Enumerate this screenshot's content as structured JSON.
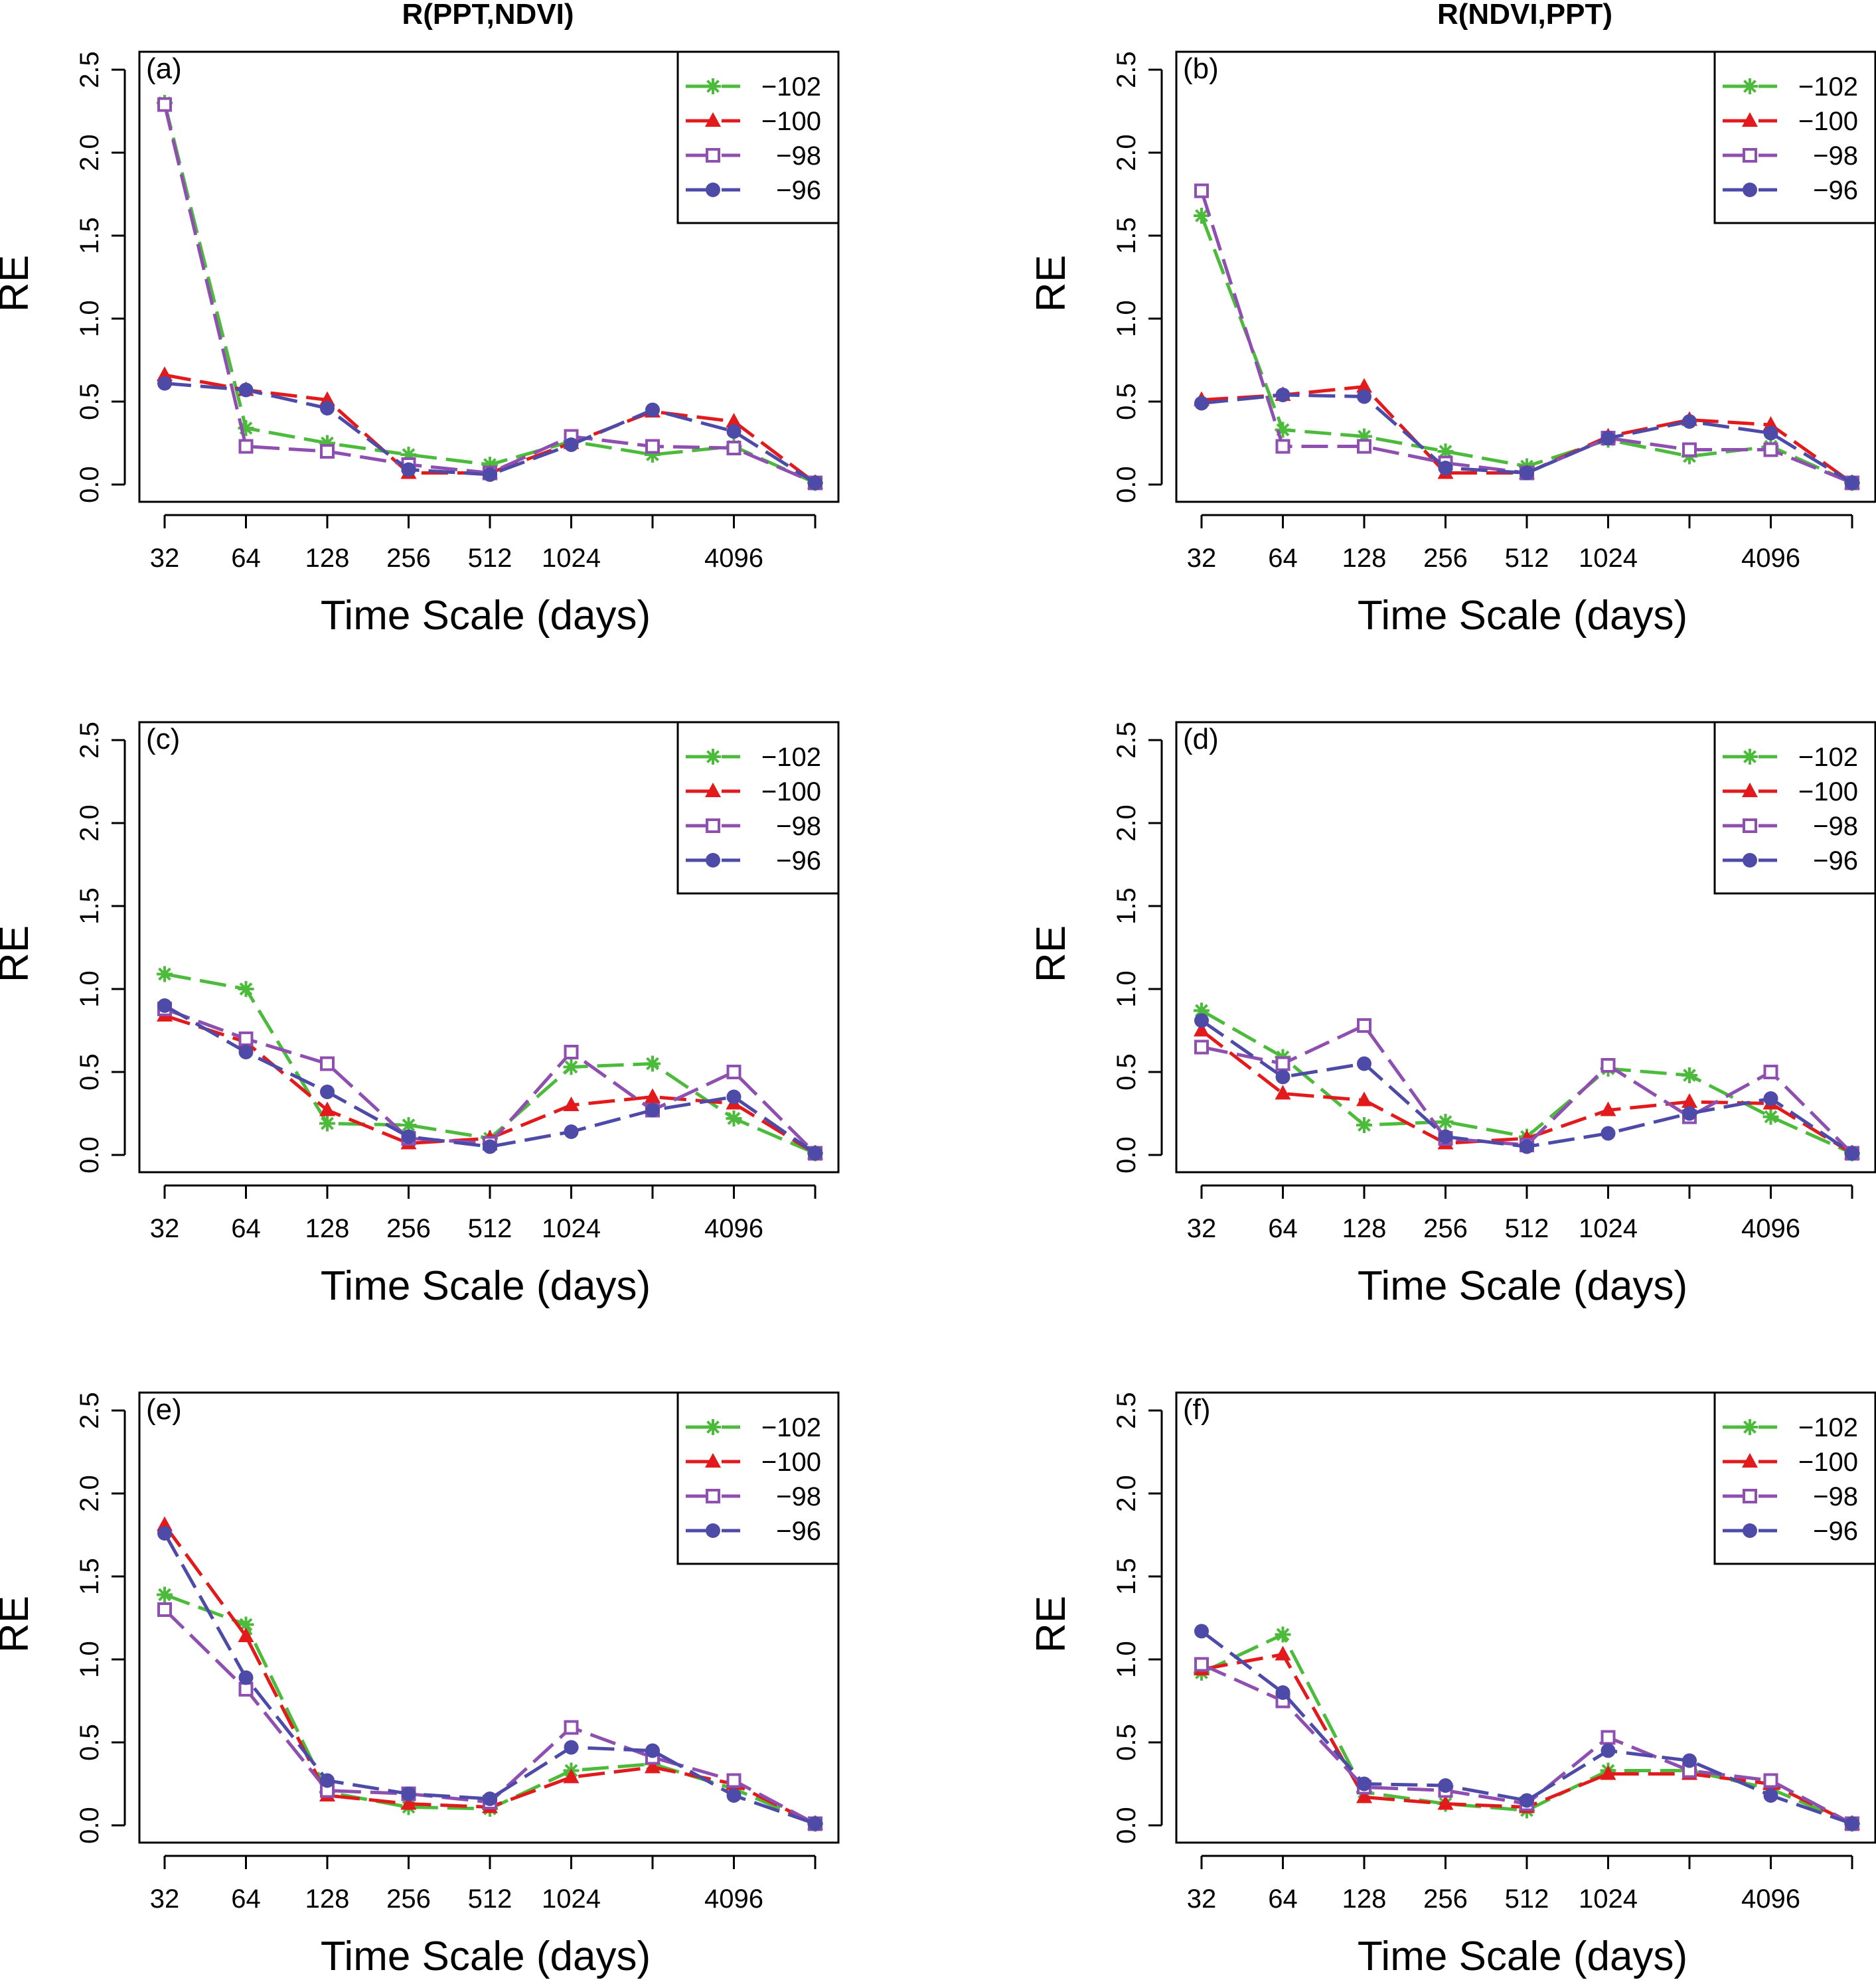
{
  "figure": {
    "column_titles": [
      "R(PPT,NDVI)",
      "R(NDVI,PPT)"
    ]
  },
  "series_styles": [
    {
      "name": "−102",
      "color": "#4cbb3c",
      "marker": "asterisk"
    },
    {
      "name": "−100",
      "color": "#e31a1c",
      "marker": "triangle"
    },
    {
      "name": "−98",
      "color": "#8e4fb0",
      "marker": "square-open"
    },
    {
      "name": "−96",
      "color": "#4d4aa8",
      "marker": "circle"
    }
  ],
  "chart_data": [
    {
      "type": "line",
      "panel_label": "(a)",
      "title": "R(PPT,NDVI)",
      "xlabel": "Time Scale (days)",
      "ylabel": "RE",
      "x_positions": [
        1,
        2,
        3,
        4,
        5,
        6,
        7,
        8,
        9
      ],
      "x_tick_labels": [
        "32",
        "64",
        "128",
        "256",
        "512",
        "1024",
        "",
        "4096",
        ""
      ],
      "ylim": [
        0,
        2.5
      ],
      "y_ticks": [
        "0.0",
        "0.5",
        "1.0",
        "1.5",
        "2.0",
        "2.5"
      ],
      "legend_position": "top-right",
      "series": [
        {
          "name": "−102",
          "values": [
            2.3,
            0.34,
            0.25,
            0.18,
            0.12,
            0.26,
            0.18,
            0.23,
            0.01
          ]
        },
        {
          "name": "−100",
          "values": [
            0.66,
            0.57,
            0.51,
            0.07,
            0.07,
            0.25,
            0.44,
            0.38,
            0.01
          ]
        },
        {
          "name": "−98",
          "values": [
            2.29,
            0.23,
            0.2,
            0.12,
            0.07,
            0.29,
            0.23,
            0.22,
            0.01
          ]
        },
        {
          "name": "−96",
          "values": [
            0.61,
            0.57,
            0.46,
            0.09,
            0.06,
            0.24,
            0.45,
            0.32,
            0.01
          ]
        }
      ]
    },
    {
      "type": "line",
      "panel_label": "(b)",
      "title": "R(NDVI,PPT)",
      "xlabel": "Time Scale (days)",
      "ylabel": "RE",
      "x_positions": [
        1,
        2,
        3,
        4,
        5,
        6,
        7,
        8,
        9
      ],
      "x_tick_labels": [
        "32",
        "64",
        "128",
        "256",
        "512",
        "1024",
        "",
        "4096",
        ""
      ],
      "ylim": [
        0,
        2.5
      ],
      "y_ticks": [
        "0.0",
        "0.5",
        "1.0",
        "1.5",
        "2.0",
        "2.5"
      ],
      "legend_position": "top-right",
      "series": [
        {
          "name": "−102",
          "values": [
            1.62,
            0.33,
            0.29,
            0.2,
            0.11,
            0.27,
            0.17,
            0.23,
            0.01
          ]
        },
        {
          "name": "−100",
          "values": [
            0.51,
            0.54,
            0.59,
            0.07,
            0.07,
            0.29,
            0.39,
            0.36,
            0.01
          ]
        },
        {
          "name": "−98",
          "values": [
            1.77,
            0.23,
            0.23,
            0.13,
            0.07,
            0.28,
            0.21,
            0.21,
            0.01
          ]
        },
        {
          "name": "−96",
          "values": [
            0.49,
            0.54,
            0.53,
            0.1,
            0.07,
            0.28,
            0.38,
            0.31,
            0.01
          ]
        }
      ]
    },
    {
      "type": "line",
      "panel_label": "(c)",
      "xlabel": "Time Scale (days)",
      "ylabel": "RE",
      "x_positions": [
        1,
        2,
        3,
        4,
        5,
        6,
        7,
        8,
        9
      ],
      "x_tick_labels": [
        "32",
        "64",
        "128",
        "256",
        "512",
        "1024",
        "",
        "4096",
        ""
      ],
      "ylim": [
        0,
        2.5
      ],
      "y_ticks": [
        "0.0",
        "0.5",
        "1.0",
        "1.5",
        "2.0",
        "2.5"
      ],
      "legend_position": "top-right",
      "series": [
        {
          "name": "−102",
          "values": [
            1.09,
            1.0,
            0.19,
            0.18,
            0.1,
            0.53,
            0.55,
            0.22,
            0.01
          ]
        },
        {
          "name": "−100",
          "values": [
            0.84,
            0.68,
            0.27,
            0.07,
            0.1,
            0.3,
            0.35,
            0.31,
            0.01
          ]
        },
        {
          "name": "−98",
          "values": [
            0.88,
            0.7,
            0.55,
            0.1,
            0.07,
            0.62,
            0.27,
            0.5,
            0.01
          ]
        },
        {
          "name": "−96",
          "values": [
            0.9,
            0.62,
            0.38,
            0.11,
            0.05,
            0.14,
            0.27,
            0.35,
            0.01
          ]
        }
      ]
    },
    {
      "type": "line",
      "panel_label": "(d)",
      "xlabel": "Time Scale (days)",
      "ylabel": "RE",
      "x_positions": [
        1,
        2,
        3,
        4,
        5,
        6,
        7,
        8,
        9
      ],
      "x_tick_labels": [
        "32",
        "64",
        "128",
        "256",
        "512",
        "1024",
        "",
        "4096",
        ""
      ],
      "ylim": [
        0,
        2.5
      ],
      "y_ticks": [
        "0.0",
        "0.5",
        "1.0",
        "1.5",
        "2.0",
        "2.5"
      ],
      "legend_position": "top-right",
      "series": [
        {
          "name": "−102",
          "values": [
            0.87,
            0.59,
            0.18,
            0.2,
            0.11,
            0.52,
            0.48,
            0.23,
            0.01
          ]
        },
        {
          "name": "−100",
          "values": [
            0.75,
            0.37,
            0.33,
            0.07,
            0.1,
            0.27,
            0.32,
            0.31,
            0.01
          ]
        },
        {
          "name": "−98",
          "values": [
            0.65,
            0.55,
            0.78,
            0.1,
            0.06,
            0.54,
            0.23,
            0.5,
            0.01
          ]
        },
        {
          "name": "−96",
          "values": [
            0.81,
            0.47,
            0.55,
            0.11,
            0.05,
            0.13,
            0.25,
            0.34,
            0.01
          ]
        }
      ]
    },
    {
      "type": "line",
      "panel_label": "(e)",
      "xlabel": "Time Scale (days)",
      "ylabel": "RE",
      "x_positions": [
        1,
        2,
        3,
        4,
        5,
        6,
        7,
        8,
        9
      ],
      "x_tick_labels": [
        "32",
        "64",
        "128",
        "256",
        "512",
        "1024",
        "",
        "4096",
        ""
      ],
      "ylim": [
        0,
        2.5
      ],
      "y_ticks": [
        "0.0",
        "0.5",
        "1.0",
        "1.5",
        "2.0",
        "2.5"
      ],
      "legend_position": "top-right",
      "series": [
        {
          "name": "−102",
          "values": [
            1.39,
            1.21,
            0.2,
            0.11,
            0.1,
            0.33,
            0.37,
            0.22,
            0.01
          ]
        },
        {
          "name": "−100",
          "values": [
            1.81,
            1.14,
            0.18,
            0.13,
            0.11,
            0.29,
            0.35,
            0.25,
            0.01
          ]
        },
        {
          "name": "−98",
          "values": [
            1.3,
            0.82,
            0.21,
            0.19,
            0.14,
            0.59,
            0.41,
            0.27,
            0.01
          ]
        },
        {
          "name": "−96",
          "values": [
            1.76,
            0.89,
            0.27,
            0.19,
            0.16,
            0.47,
            0.45,
            0.18,
            0.01
          ]
        }
      ]
    },
    {
      "type": "line",
      "panel_label": "(f)",
      "xlabel": "Time Scale (days)",
      "ylabel": "RE",
      "x_positions": [
        1,
        2,
        3,
        4,
        5,
        6,
        7,
        8,
        9
      ],
      "x_tick_labels": [
        "32",
        "64",
        "128",
        "256",
        "512",
        "1024",
        "",
        "4096",
        ""
      ],
      "ylim": [
        0,
        2.5
      ],
      "y_ticks": [
        "0.0",
        "0.5",
        "1.0",
        "1.5",
        "2.0",
        "2.5"
      ],
      "legend_position": "top-right",
      "series": [
        {
          "name": "−102",
          "values": [
            0.92,
            1.15,
            0.2,
            0.13,
            0.09,
            0.33,
            0.33,
            0.22,
            0.01
          ]
        },
        {
          "name": "−100",
          "values": [
            0.94,
            1.03,
            0.17,
            0.13,
            0.11,
            0.31,
            0.31,
            0.25,
            0.01
          ]
        },
        {
          "name": "−98",
          "values": [
            0.97,
            0.75,
            0.23,
            0.21,
            0.13,
            0.53,
            0.33,
            0.27,
            0.01
          ]
        },
        {
          "name": "−96",
          "values": [
            1.17,
            0.8,
            0.25,
            0.24,
            0.15,
            0.45,
            0.39,
            0.18,
            0.01
          ]
        }
      ]
    }
  ]
}
